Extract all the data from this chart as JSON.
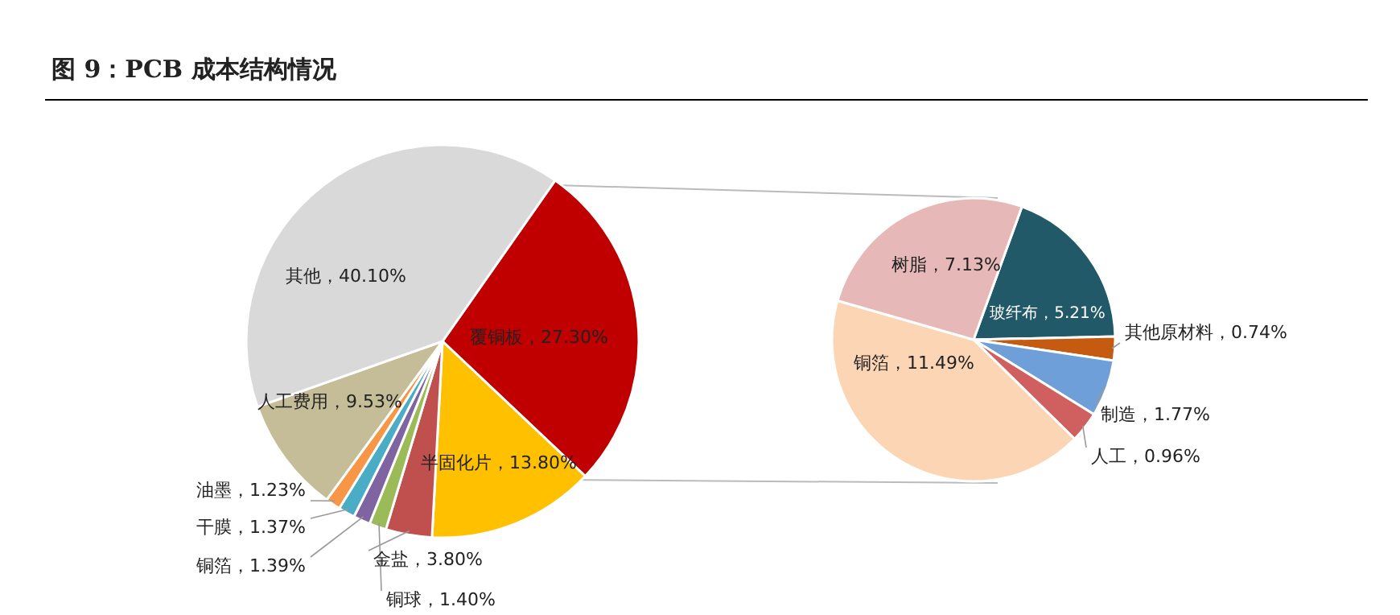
{
  "chart_data": [
    {
      "type": "pie",
      "title": "图 9：PCB 成本结构情况",
      "categories": [
        "覆铜板",
        "半固化片",
        "金盐",
        "铜球",
        "铜箔",
        "干膜",
        "油墨",
        "人工费用",
        "其他"
      ],
      "values": [
        27.3,
        13.8,
        3.8,
        1.4,
        1.39,
        1.37,
        1.23,
        9.53,
        40.1
      ],
      "value_labels": [
        "27.30%",
        "13.80%",
        "3.80%",
        "1.40%",
        "1.39%",
        "1.37%",
        "1.23%",
        "9.53%",
        "40.10%"
      ],
      "colors": [
        "#c00000",
        "#ffc000",
        "#c0504d",
        "#9bbb59",
        "#8064a2",
        "#4bacc6",
        "#f79646",
        "#c4bd97",
        "#d9d9d9"
      ]
    },
    {
      "type": "pie",
      "categories": [
        "玻纤布",
        "其他原材料",
        "制造",
        "人工",
        "铜箔",
        "树脂"
      ],
      "values": [
        5.21,
        0.74,
        1.77,
        0.96,
        11.49,
        7.13
      ],
      "value_labels": [
        "5.21%",
        "0.74%",
        "1.77%",
        "0.96%",
        "11.49%",
        "7.13%"
      ],
      "colors": [
        "#215968",
        "#c55a11",
        "#6f9fd8",
        "#d06060",
        "#fcd5b5",
        "#e6b9b8"
      ]
    }
  ]
}
